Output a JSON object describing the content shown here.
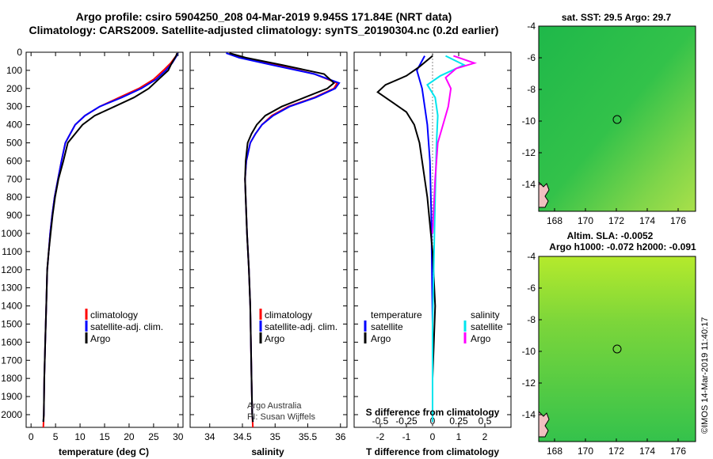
{
  "title": {
    "line1": "Argo profile: csiro 5904250_208 04-Mar-2019 9.945S 171.84E (NRT data)",
    "line2": "Climatology: CARS2009. Satellite-adjusted climatology: synTS_20190304.nc (0.2d earlier)"
  },
  "colors": {
    "climatology": "#ff0000",
    "satellite": "#0000ff",
    "argo": "#000000",
    "sat_salinity": "#00e5ee",
    "argo_salinity": "#ff00ff"
  },
  "chart_data": [
    {
      "id": "temperature",
      "type": "line",
      "xlabel": "temperature (deg C)",
      "xlim": [
        -1,
        31
      ],
      "xticks": [
        0,
        5,
        10,
        15,
        20,
        25,
        30
      ],
      "ylim": [
        2070,
        0
      ],
      "yticks": [
        0,
        100,
        200,
        300,
        400,
        500,
        600,
        700,
        800,
        900,
        1000,
        1100,
        1200,
        1300,
        1400,
        1500,
        1600,
        1700,
        1800,
        1900,
        2000
      ],
      "legend": [
        "climatology",
        "satellite-adj. clim.",
        "Argo"
      ],
      "series": [
        {
          "name": "climatology",
          "color": "#ff0000",
          "x": [
            29.8,
            29.6,
            28.5,
            27,
            25,
            22,
            18,
            14,
            11,
            9,
            8,
            7,
            6.2,
            5.5,
            4.8,
            4.3,
            3.9,
            3.6,
            3.3,
            3.1,
            2.9,
            2.7,
            2.6,
            2.5
          ],
          "y": [
            5,
            20,
            60,
            100,
            150,
            200,
            250,
            300,
            350,
            400,
            450,
            500,
            600,
            700,
            800,
            900,
            1000,
            1100,
            1200,
            1400,
            1600,
            1800,
            2000,
            2070
          ]
        },
        {
          "name": "satellite-adj. clim.",
          "color": "#0000ff",
          "x": [
            29.9,
            29.7,
            28.8,
            27.5,
            25.5,
            22.5,
            18.5,
            14,
            11,
            9,
            8,
            7,
            6.2,
            5.5,
            4.8,
            4.3,
            3.9,
            3.6,
            3.3,
            3.1,
            2.9,
            2.7,
            2.6,
            2.5
          ],
          "y": [
            5,
            20,
            60,
            100,
            150,
            200,
            250,
            300,
            350,
            400,
            450,
            500,
            600,
            700,
            800,
            900,
            1000,
            1100,
            1200,
            1400,
            1600,
            1800,
            2000,
            2040
          ]
        },
        {
          "name": "Argo",
          "color": "#000000",
          "x": [
            29.8,
            29.6,
            28.7,
            28,
            26,
            24,
            21,
            17,
            13,
            10.5,
            9,
            7.5,
            6.6,
            5.6,
            4.9,
            4.4,
            4,
            3.6,
            3.3,
            3.1,
            2.9,
            2.7,
            2.6,
            2.5
          ],
          "y": [
            5,
            20,
            60,
            100,
            150,
            200,
            250,
            300,
            350,
            400,
            450,
            500,
            600,
            700,
            800,
            900,
            1000,
            1100,
            1200,
            1400,
            1600,
            1800,
            2000,
            2040
          ]
        }
      ]
    },
    {
      "id": "salinity",
      "type": "line",
      "xlabel": "salinity",
      "xlim": [
        33.7,
        36.1
      ],
      "xticks": [
        34,
        34.5,
        35,
        35.5,
        36
      ],
      "ylim": [
        2070,
        0
      ],
      "legend": [
        "climatology",
        "satellite-adj. clim.",
        "Argo"
      ],
      "note": [
        "Argo Australia",
        "PI: Susan Wijffels"
      ],
      "series": [
        {
          "name": "climatology",
          "color": "#ff0000",
          "x": [
            34.3,
            34.5,
            35.0,
            35.6,
            35.95,
            35.9,
            35.6,
            35.2,
            34.95,
            34.8,
            34.7,
            34.62,
            34.56,
            34.54,
            34.55,
            34.57,
            34.6,
            34.62,
            34.63,
            34.64,
            34.65,
            34.66
          ],
          "y": [
            5,
            30,
            70,
            120,
            170,
            200,
            250,
            300,
            350,
            400,
            450,
            500,
            600,
            700,
            800,
            1000,
            1200,
            1400,
            1600,
            1800,
            2000,
            2070
          ]
        },
        {
          "name": "satellite-adj. clim.",
          "color": "#0000ff",
          "x": [
            34.25,
            34.45,
            34.95,
            35.6,
            35.98,
            35.92,
            35.62,
            35.22,
            34.97,
            34.8,
            34.7,
            34.62,
            34.56,
            34.54,
            34.55,
            34.57,
            34.6,
            34.62,
            34.63,
            34.64,
            34.65,
            34.66
          ],
          "y": [
            5,
            30,
            70,
            120,
            170,
            200,
            250,
            300,
            350,
            400,
            450,
            500,
            600,
            700,
            800,
            1000,
            1200,
            1400,
            1600,
            1800,
            2000,
            2040
          ]
        },
        {
          "name": "Argo",
          "color": "#000000",
          "x": [
            34.3,
            34.55,
            35.1,
            35.75,
            35.9,
            35.8,
            35.45,
            35.1,
            34.85,
            34.72,
            34.64,
            34.58,
            34.55,
            34.54,
            34.55,
            34.57,
            34.6,
            34.62,
            34.63,
            34.64,
            34.65,
            34.66
          ],
          "y": [
            5,
            30,
            70,
            120,
            170,
            200,
            250,
            300,
            350,
            400,
            450,
            500,
            600,
            700,
            800,
            1000,
            1200,
            1400,
            1600,
            1800,
            2000,
            2040
          ]
        }
      ]
    },
    {
      "id": "difference",
      "type": "line",
      "xlabel": "T difference from climatology",
      "xlabel_top": "S difference from climatology",
      "xlim": [
        -3,
        3
      ],
      "xticks": [
        -2,
        -1,
        0,
        1,
        2
      ],
      "xticks_s": [
        -0.5,
        -0.25,
        0,
        0.25,
        0.5
      ],
      "xtick_s_labels": [
        "-0.5",
        "-0.25",
        "0",
        "0.25",
        "0.5"
      ],
      "ylim": [
        2070,
        0
      ],
      "legend_left_title": "temperature",
      "legend_right_title": "salinity",
      "legend": [
        "satellite",
        "Argo"
      ],
      "series": [
        {
          "name": "T satellite",
          "color": "#0000ff",
          "x": [
            -0.3,
            -0.6,
            -0.4,
            -0.3,
            -0.2,
            -0.1,
            -0.05,
            0,
            0
          ],
          "y": [
            20,
            100,
            200,
            300,
            400,
            600,
            900,
            1500,
            2040
          ]
        },
        {
          "name": "T Argo",
          "color": "#000000",
          "x": [
            0,
            -0.5,
            -1,
            -1.8,
            -2.1,
            -1.5,
            -1.0,
            -0.7,
            -0.5,
            -0.4,
            -0.2,
            0,
            0.1,
            0,
            0
          ],
          "y": [
            20,
            80,
            130,
            180,
            220,
            280,
            330,
            400,
            500,
            600,
            800,
            1100,
            1400,
            1800,
            2040
          ]
        },
        {
          "name": "S satellite",
          "color": "#00e5ee",
          "x": [
            0.5,
            1.2,
            0.3,
            -0.2,
            0.1,
            0.2,
            0.15,
            0.1,
            0,
            0
          ],
          "y": [
            20,
            70,
            130,
            180,
            250,
            350,
            500,
            800,
            1500,
            2040
          ]
        },
        {
          "name": "S Argo",
          "color": "#ff00ff",
          "x": [
            0.8,
            1.6,
            0.9,
            0.5,
            0.7,
            0.6,
            0.4,
            0.2,
            0.1,
            0
          ],
          "y": [
            20,
            60,
            90,
            140,
            200,
            300,
            400,
            500,
            700,
            1000
          ]
        }
      ]
    }
  ],
  "maps": [
    {
      "id": "sst-map",
      "title": "sat. SST: 29.5 Argo: 29.7",
      "x_ticks": [
        "168",
        "170",
        "172",
        "174",
        "176"
      ],
      "y_ticks": [
        "-4",
        "-6",
        "-8",
        "-10",
        "-12",
        "-14"
      ]
    },
    {
      "id": "sla-map",
      "title": "Altim. SLA: -0.0052",
      "subtitle": "Argo h1000: -0.072 h2000: -0.091",
      "x_ticks": [
        "168",
        "170",
        "172",
        "174",
        "176"
      ],
      "y_ticks": [
        "-4",
        "-6",
        "-8",
        "-10",
        "-12",
        "-14"
      ]
    }
  ],
  "credit": "©IMOS 14-Mar-2019 11:40:17"
}
